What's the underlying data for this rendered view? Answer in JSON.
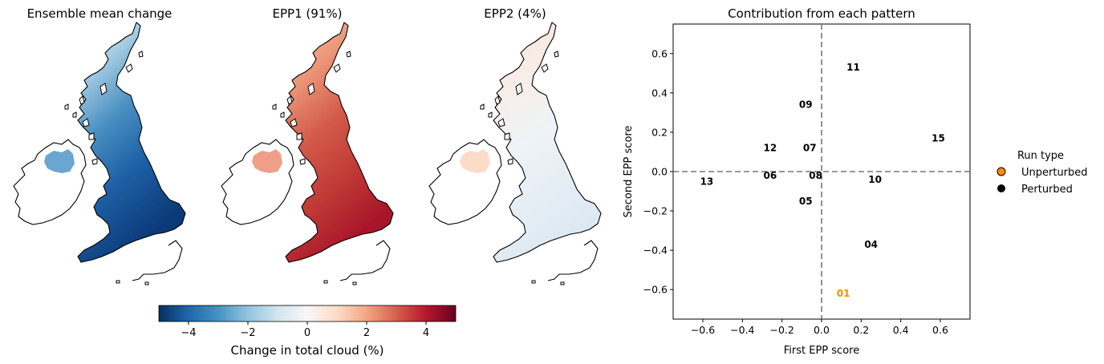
{
  "maps": [
    {
      "title": "Ensemble mean change",
      "pattern": "blue-strong"
    },
    {
      "title": "EPP1 (91%)",
      "pattern": "red-strong"
    },
    {
      "title": "EPP2 (4%)",
      "pattern": "mixed-weak"
    }
  ],
  "colorbar": {
    "label": "Change in total cloud (%)",
    "range": [
      -5,
      5
    ],
    "ticks": [
      -4,
      -2,
      0,
      2,
      4
    ],
    "tick_labels": [
      "−4",
      "−2",
      "0",
      "2",
      "4"
    ]
  },
  "chart_data": {
    "type": "scatter",
    "title": "Contribution from each pattern",
    "xlabel": "First EPP score",
    "ylabel": "Second EPP score",
    "xlim": [
      -0.75,
      0.75
    ],
    "ylim": [
      -0.75,
      0.75
    ],
    "xticks": [
      -0.6,
      -0.4,
      -0.2,
      0.0,
      0.2,
      0.4,
      0.6
    ],
    "xtick_labels": [
      "−0.6",
      "−0.4",
      "−0.2",
      "0.0",
      "0.2",
      "0.4",
      "0.6"
    ],
    "yticks": [
      -0.6,
      -0.4,
      -0.2,
      0.0,
      0.2,
      0.4,
      0.6
    ],
    "ytick_labels": [
      "−0.6",
      "−0.4",
      "−0.2",
      "0.0",
      "0.2",
      "0.4",
      "0.6"
    ],
    "reference_lines": {
      "x": 0,
      "y": 0,
      "style": "dashed"
    },
    "grid": false,
    "points": [
      {
        "label": "01",
        "x": 0.11,
        "y": -0.62,
        "run_type": "Unperturbed"
      },
      {
        "label": "04",
        "x": 0.25,
        "y": -0.37,
        "run_type": "Perturbed"
      },
      {
        "label": "05",
        "x": -0.08,
        "y": -0.15,
        "run_type": "Perturbed"
      },
      {
        "label": "06",
        "x": -0.26,
        "y": -0.02,
        "run_type": "Perturbed"
      },
      {
        "label": "07",
        "x": -0.06,
        "y": 0.12,
        "run_type": "Perturbed"
      },
      {
        "label": "08",
        "x": -0.03,
        "y": -0.02,
        "run_type": "Perturbed"
      },
      {
        "label": "09",
        "x": -0.08,
        "y": 0.34,
        "run_type": "Perturbed"
      },
      {
        "label": "10",
        "x": 0.27,
        "y": -0.04,
        "run_type": "Perturbed"
      },
      {
        "label": "11",
        "x": 0.16,
        "y": 0.53,
        "run_type": "Perturbed"
      },
      {
        "label": "12",
        "x": -0.26,
        "y": 0.12,
        "run_type": "Perturbed"
      },
      {
        "label": "13",
        "x": -0.58,
        "y": -0.05,
        "run_type": "Perturbed"
      },
      {
        "label": "15",
        "x": 0.59,
        "y": 0.17,
        "run_type": "Perturbed"
      }
    ],
    "legend": {
      "title": "Run type",
      "placement": "right",
      "entries": [
        {
          "name": "Unperturbed",
          "color": "#ff8c00"
        },
        {
          "name": "Perturbed",
          "color": "#000000"
        }
      ]
    }
  }
}
